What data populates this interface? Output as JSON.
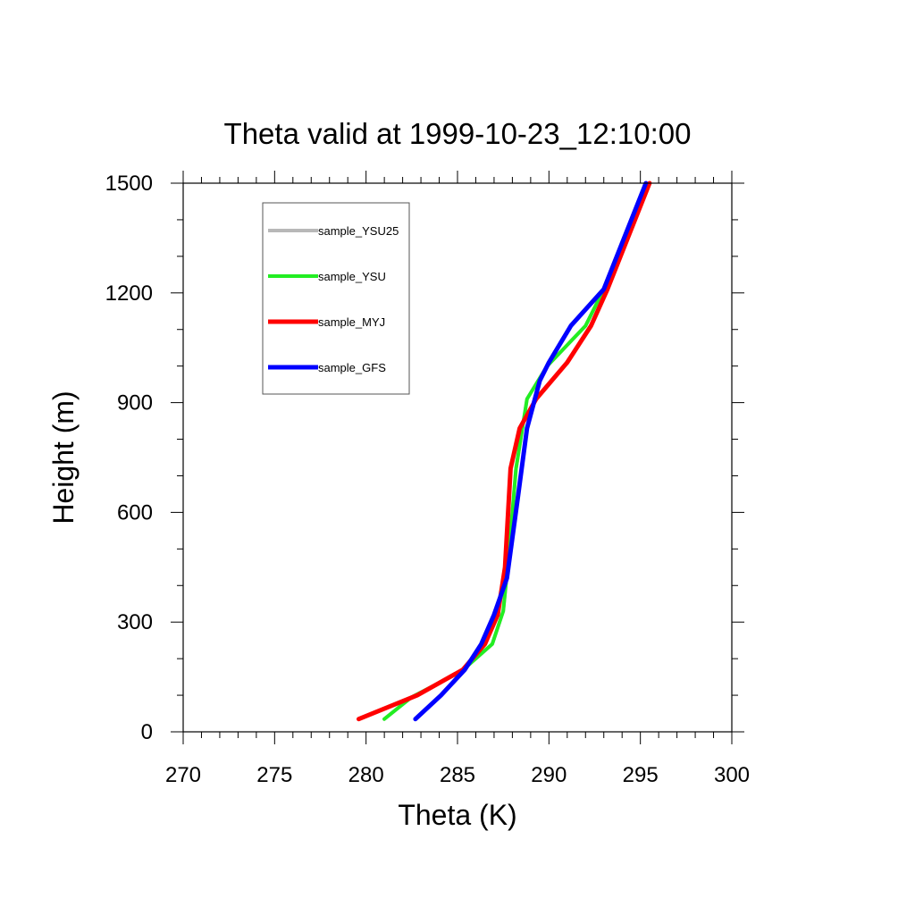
{
  "chart_data": {
    "type": "line",
    "title": "Theta valid at 1999-10-23_12:10:00",
    "xlabel": "Theta (K)",
    "ylabel": "Height (m)",
    "xlim": [
      270,
      300
    ],
    "ylim": [
      0,
      1500
    ],
    "x_ticks": [
      270,
      275,
      280,
      285,
      290,
      295,
      300
    ],
    "x_tick_labels": [
      "270",
      "275",
      "280",
      "285",
      "290",
      "295",
      "300"
    ],
    "y_ticks": [
      0,
      300,
      600,
      900,
      1200,
      1500
    ],
    "y_tick_labels": [
      "0",
      "300",
      "600",
      "900",
      "1200",
      "1500"
    ],
    "grid": false,
    "legend_position": "top-left",
    "series": [
      {
        "name": "sample_YSU25",
        "color": "#b8b8b8",
        "points": [
          [
            281.0,
            35
          ],
          [
            282.5,
            95
          ],
          [
            285.2,
            165
          ],
          [
            286.9,
            240
          ],
          [
            287.5,
            330
          ],
          [
            287.8,
            480
          ],
          [
            288.2,
            720
          ],
          [
            288.8,
            910
          ],
          [
            289.9,
            1000
          ],
          [
            292.0,
            1110
          ],
          [
            293.0,
            1210
          ],
          [
            295.5,
            1500
          ]
        ]
      },
      {
        "name": "sample_YSU",
        "color": "#22ee22",
        "points": [
          [
            281.0,
            35
          ],
          [
            282.5,
            95
          ],
          [
            285.2,
            165
          ],
          [
            286.9,
            240
          ],
          [
            287.5,
            330
          ],
          [
            287.8,
            480
          ],
          [
            288.2,
            720
          ],
          [
            288.8,
            910
          ],
          [
            289.9,
            1000
          ],
          [
            292.0,
            1110
          ],
          [
            293.0,
            1210
          ],
          [
            295.5,
            1500
          ]
        ]
      },
      {
        "name": "sample_MYJ",
        "color": "#ff0000",
        "points": [
          [
            279.6,
            35
          ],
          [
            282.8,
            100
          ],
          [
            285.3,
            170
          ],
          [
            286.5,
            240
          ],
          [
            287.2,
            320
          ],
          [
            287.6,
            450
          ],
          [
            287.9,
            720
          ],
          [
            288.4,
            830
          ],
          [
            289.3,
            910
          ],
          [
            291.0,
            1010
          ],
          [
            292.3,
            1110
          ],
          [
            293.2,
            1210
          ],
          [
            295.5,
            1500
          ]
        ]
      },
      {
        "name": "sample_GFS",
        "color": "#0000ff",
        "points": [
          [
            282.7,
            35
          ],
          [
            284.1,
            100
          ],
          [
            285.4,
            170
          ],
          [
            286.3,
            240
          ],
          [
            287.0,
            320
          ],
          [
            287.7,
            420
          ],
          [
            288.3,
            640
          ],
          [
            288.8,
            830
          ],
          [
            289.5,
            960
          ],
          [
            290.0,
            1010
          ],
          [
            291.2,
            1110
          ],
          [
            293.0,
            1210
          ],
          [
            295.3,
            1500
          ]
        ]
      }
    ]
  }
}
